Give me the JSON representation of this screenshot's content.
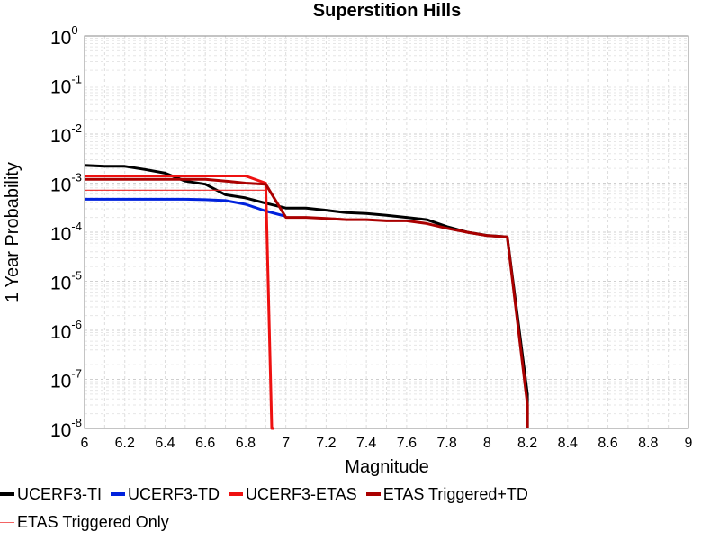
{
  "chart_data": {
    "type": "line",
    "title": "Superstition Hills",
    "xlabel": "Magnitude",
    "ylabel": "1 Year Probability",
    "xlim": [
      6,
      9
    ],
    "ylim": [
      1e-08,
      1
    ],
    "yscale": "log",
    "grid": true,
    "legend_position": "bottom",
    "x_ticks": [
      "6",
      "6.2",
      "6.4",
      "6.6",
      "6.8",
      "7",
      "7.2",
      "7.4",
      "7.6",
      "7.8",
      "8",
      "8.2",
      "8.4",
      "8.6",
      "8.8",
      "9"
    ],
    "y_ticks": [
      {
        "base": "10",
        "exp": "0",
        "value": 1
      },
      {
        "base": "10",
        "exp": "-1",
        "value": 0.1
      },
      {
        "base": "10",
        "exp": "-2",
        "value": 0.01
      },
      {
        "base": "10",
        "exp": "-3",
        "value": 0.001
      },
      {
        "base": "10",
        "exp": "-4",
        "value": 0.0001
      },
      {
        "base": "10",
        "exp": "-5",
        "value": 1e-05
      },
      {
        "base": "10",
        "exp": "-6",
        "value": 1e-06
      },
      {
        "base": "10",
        "exp": "-7",
        "value": 1e-07
      },
      {
        "base": "10",
        "exp": "-8",
        "value": 1e-08
      }
    ],
    "series": [
      {
        "name": "UCERF3-TI",
        "color": "#000000",
        "x": [
          6.0,
          6.1,
          6.2,
          6.3,
          6.4,
          6.5,
          6.6,
          6.7,
          6.8,
          6.9,
          7.0,
          7.1,
          7.2,
          7.3,
          7.4,
          7.5,
          7.6,
          7.7,
          7.8,
          7.9,
          8.0,
          8.1,
          8.2,
          8.2
        ],
        "y": [
          0.0023,
          0.0022,
          0.0022,
          0.0019,
          0.0016,
          0.0011,
          0.00095,
          0.00058,
          0.0005,
          0.00039,
          0.00031,
          0.00031,
          0.00028,
          0.00025,
          0.00024,
          0.00022,
          0.0002,
          0.00018,
          0.00013,
          0.0001,
          8.6e-05,
          8e-05,
          5e-08,
          1e-08
        ]
      },
      {
        "name": "UCERF3-TD",
        "color": "#0022dd",
        "x": [
          6.0,
          6.1,
          6.2,
          6.3,
          6.4,
          6.5,
          6.6,
          6.7,
          6.8,
          6.9,
          7.0
        ],
        "y": [
          0.00047,
          0.00047,
          0.00047,
          0.00047,
          0.00047,
          0.00047,
          0.00046,
          0.00044,
          0.00037,
          0.00027,
          0.00021
        ]
      },
      {
        "name": "UCERF3-ETAS",
        "color": "#ee1111",
        "x": [
          6.0,
          6.8,
          6.9,
          6.93,
          6.94
        ],
        "y": [
          0.0014,
          0.0014,
          0.001,
          1e-08,
          1e-08
        ]
      },
      {
        "name": "ETAS Triggered+TD",
        "color": "#aa0000",
        "x": [
          6.0,
          6.5,
          6.6,
          6.7,
          6.8,
          6.9,
          7.0,
          7.1,
          7.2,
          7.3,
          7.4,
          7.5,
          7.6,
          7.7,
          7.8,
          7.9,
          8.0,
          8.1,
          8.2,
          8.2
        ],
        "y": [
          0.0012,
          0.0012,
          0.0012,
          0.0011,
          0.001,
          0.00095,
          0.0002,
          0.0002,
          0.00019,
          0.00018,
          0.00018,
          0.00017,
          0.00017,
          0.00015,
          0.00012,
          0.0001,
          8.5e-05,
          8e-05,
          3e-08,
          1e-08
        ]
      },
      {
        "name": "ETAS Triggered Only",
        "color": "#ee2222",
        "x": [
          6.0,
          6.9
        ],
        "y": [
          0.00072,
          0.00072
        ]
      }
    ]
  }
}
